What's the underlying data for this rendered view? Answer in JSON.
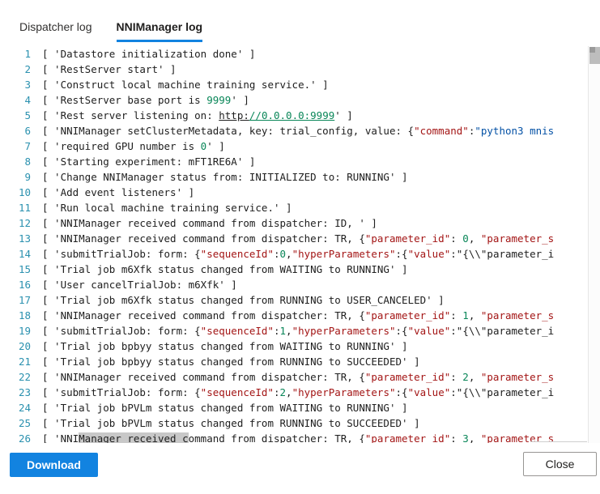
{
  "colors": {
    "accent": "#1283e0",
    "line_number": "#2b91af",
    "green": "#098658",
    "red": "#a31515",
    "blue": "#0451a5",
    "selection": "#c8c8c8"
  },
  "tabs": [
    {
      "label": "Dispatcher log",
      "active": false
    },
    {
      "label": "NNIManager log",
      "active": true
    }
  ],
  "buttons": {
    "download": "Download",
    "close": "Close"
  },
  "log": {
    "lines": [
      {
        "n": "1",
        "segs": [
          [
            "d",
            "[ 'Datastore initialization done' ]"
          ]
        ]
      },
      {
        "n": "2",
        "segs": [
          [
            "d",
            "[ 'RestServer start' ]"
          ]
        ]
      },
      {
        "n": "3",
        "segs": [
          [
            "d",
            "[ 'Construct local machine training service.' ]"
          ]
        ]
      },
      {
        "n": "4",
        "segs": [
          [
            "d",
            "[ 'RestServer base port is "
          ],
          [
            "g",
            "9999"
          ],
          [
            "d",
            "' ]"
          ]
        ]
      },
      {
        "n": "5",
        "segs": [
          [
            "d",
            "[ 'Rest server listening on: "
          ],
          [
            "ud",
            "http:"
          ],
          [
            "ug",
            "//0.0.0.0:9999"
          ],
          [
            "d",
            "' ]"
          ]
        ]
      },
      {
        "n": "6",
        "segs": [
          [
            "d",
            "[ 'NNIManager setClusterMetadata, key: trial_config, value: {"
          ],
          [
            "r",
            "\"command\""
          ],
          [
            "d",
            ":"
          ],
          [
            "b",
            "\"python3 mnis"
          ]
        ]
      },
      {
        "n": "7",
        "segs": [
          [
            "d",
            "[ 'required GPU number is "
          ],
          [
            "g",
            "0"
          ],
          [
            "d",
            "' ]"
          ]
        ]
      },
      {
        "n": "8",
        "segs": [
          [
            "d",
            "[ 'Starting experiment: mFT1RE6A' ]"
          ]
        ]
      },
      {
        "n": "9",
        "segs": [
          [
            "d",
            "[ 'Change NNIManager status from: INITIALIZED to: RUNNING' ]"
          ]
        ]
      },
      {
        "n": "10",
        "segs": [
          [
            "d",
            "[ 'Add event listeners' ]"
          ]
        ]
      },
      {
        "n": "11",
        "segs": [
          [
            "d",
            "[ 'Run local machine training service.' ]"
          ]
        ]
      },
      {
        "n": "12",
        "segs": [
          [
            "d",
            "[ 'NNIManager received command from dispatcher: ID, ' ]"
          ]
        ]
      },
      {
        "n": "13",
        "segs": [
          [
            "d",
            "[ 'NNIManager received command from dispatcher: TR, {"
          ],
          [
            "r",
            "\"parameter_id\""
          ],
          [
            "d",
            ": "
          ],
          [
            "g",
            "0"
          ],
          [
            "d",
            ", "
          ],
          [
            "r",
            "\"parameter_s"
          ]
        ]
      },
      {
        "n": "14",
        "segs": [
          [
            "d",
            "[ 'submitTrialJob: form: {"
          ],
          [
            "r",
            "\"sequenceId\""
          ],
          [
            "d",
            ":"
          ],
          [
            "g",
            "0"
          ],
          [
            "d",
            ","
          ],
          [
            "r",
            "\"hyperParameters\""
          ],
          [
            "d",
            ":{"
          ],
          [
            "r",
            "\"value\""
          ],
          [
            "d",
            ":\"{\\\\\"parameter_i"
          ]
        ]
      },
      {
        "n": "15",
        "segs": [
          [
            "d",
            "[ 'Trial job m6Xfk status changed from WAITING to RUNNING' ]"
          ]
        ]
      },
      {
        "n": "16",
        "segs": [
          [
            "d",
            "[ 'User cancelTrialJob: m6Xfk' ]"
          ]
        ]
      },
      {
        "n": "17",
        "segs": [
          [
            "d",
            "[ 'Trial job m6Xfk status changed from RUNNING to USER_CANCELED' ]"
          ]
        ]
      },
      {
        "n": "18",
        "segs": [
          [
            "d",
            "[ 'NNIManager received command from dispatcher: TR, {"
          ],
          [
            "r",
            "\"parameter_id\""
          ],
          [
            "d",
            ": "
          ],
          [
            "g",
            "1"
          ],
          [
            "d",
            ", "
          ],
          [
            "r",
            "\"parameter_s"
          ]
        ]
      },
      {
        "n": "19",
        "segs": [
          [
            "d",
            "[ 'submitTrialJob: form: {"
          ],
          [
            "r",
            "\"sequenceId\""
          ],
          [
            "d",
            ":"
          ],
          [
            "g",
            "1"
          ],
          [
            "d",
            ","
          ],
          [
            "r",
            "\"hyperParameters\""
          ],
          [
            "d",
            ":{"
          ],
          [
            "r",
            "\"value\""
          ],
          [
            "d",
            ":\"{\\\\\"parameter_i"
          ]
        ]
      },
      {
        "n": "20",
        "segs": [
          [
            "d",
            "[ 'Trial job bpbyy status changed from WAITING to RUNNING' ]"
          ]
        ]
      },
      {
        "n": "21",
        "segs": [
          [
            "d",
            "[ 'Trial job bpbyy status changed from RUNNING to SUCCEEDED' ]"
          ]
        ]
      },
      {
        "n": "22",
        "segs": [
          [
            "d",
            "[ 'NNIManager received command from dispatcher: TR, {"
          ],
          [
            "r",
            "\"parameter_id\""
          ],
          [
            "d",
            ": "
          ],
          [
            "g",
            "2"
          ],
          [
            "d",
            ", "
          ],
          [
            "r",
            "\"parameter_s"
          ]
        ]
      },
      {
        "n": "23",
        "segs": [
          [
            "d",
            "[ 'submitTrialJob: form: {"
          ],
          [
            "r",
            "\"sequenceId\""
          ],
          [
            "d",
            ":"
          ],
          [
            "g",
            "2"
          ],
          [
            "d",
            ","
          ],
          [
            "r",
            "\"hyperParameters\""
          ],
          [
            "d",
            ":{"
          ],
          [
            "r",
            "\"value\""
          ],
          [
            "d",
            ":\"{\\\\\"parameter_i"
          ]
        ]
      },
      {
        "n": "24",
        "segs": [
          [
            "d",
            "[ 'Trial job bPVLm status changed from WAITING to RUNNING' ]"
          ]
        ]
      },
      {
        "n": "25",
        "segs": [
          [
            "d",
            "[ 'Trial job bPVLm status changed from RUNNING to SUCCEEDED' ]"
          ]
        ]
      },
      {
        "n": "26",
        "segs": [
          [
            "d",
            "[ 'NNI"
          ],
          [
            "hl",
            "Manager received c"
          ],
          [
            "d",
            "ommand from dispatcher: TR, {"
          ],
          [
            "r",
            "\"parameter_id\""
          ],
          [
            "d",
            ": "
          ],
          [
            "g",
            "3"
          ],
          [
            "d",
            ", "
          ],
          [
            "r",
            "\"parameter_s"
          ]
        ]
      }
    ]
  }
}
